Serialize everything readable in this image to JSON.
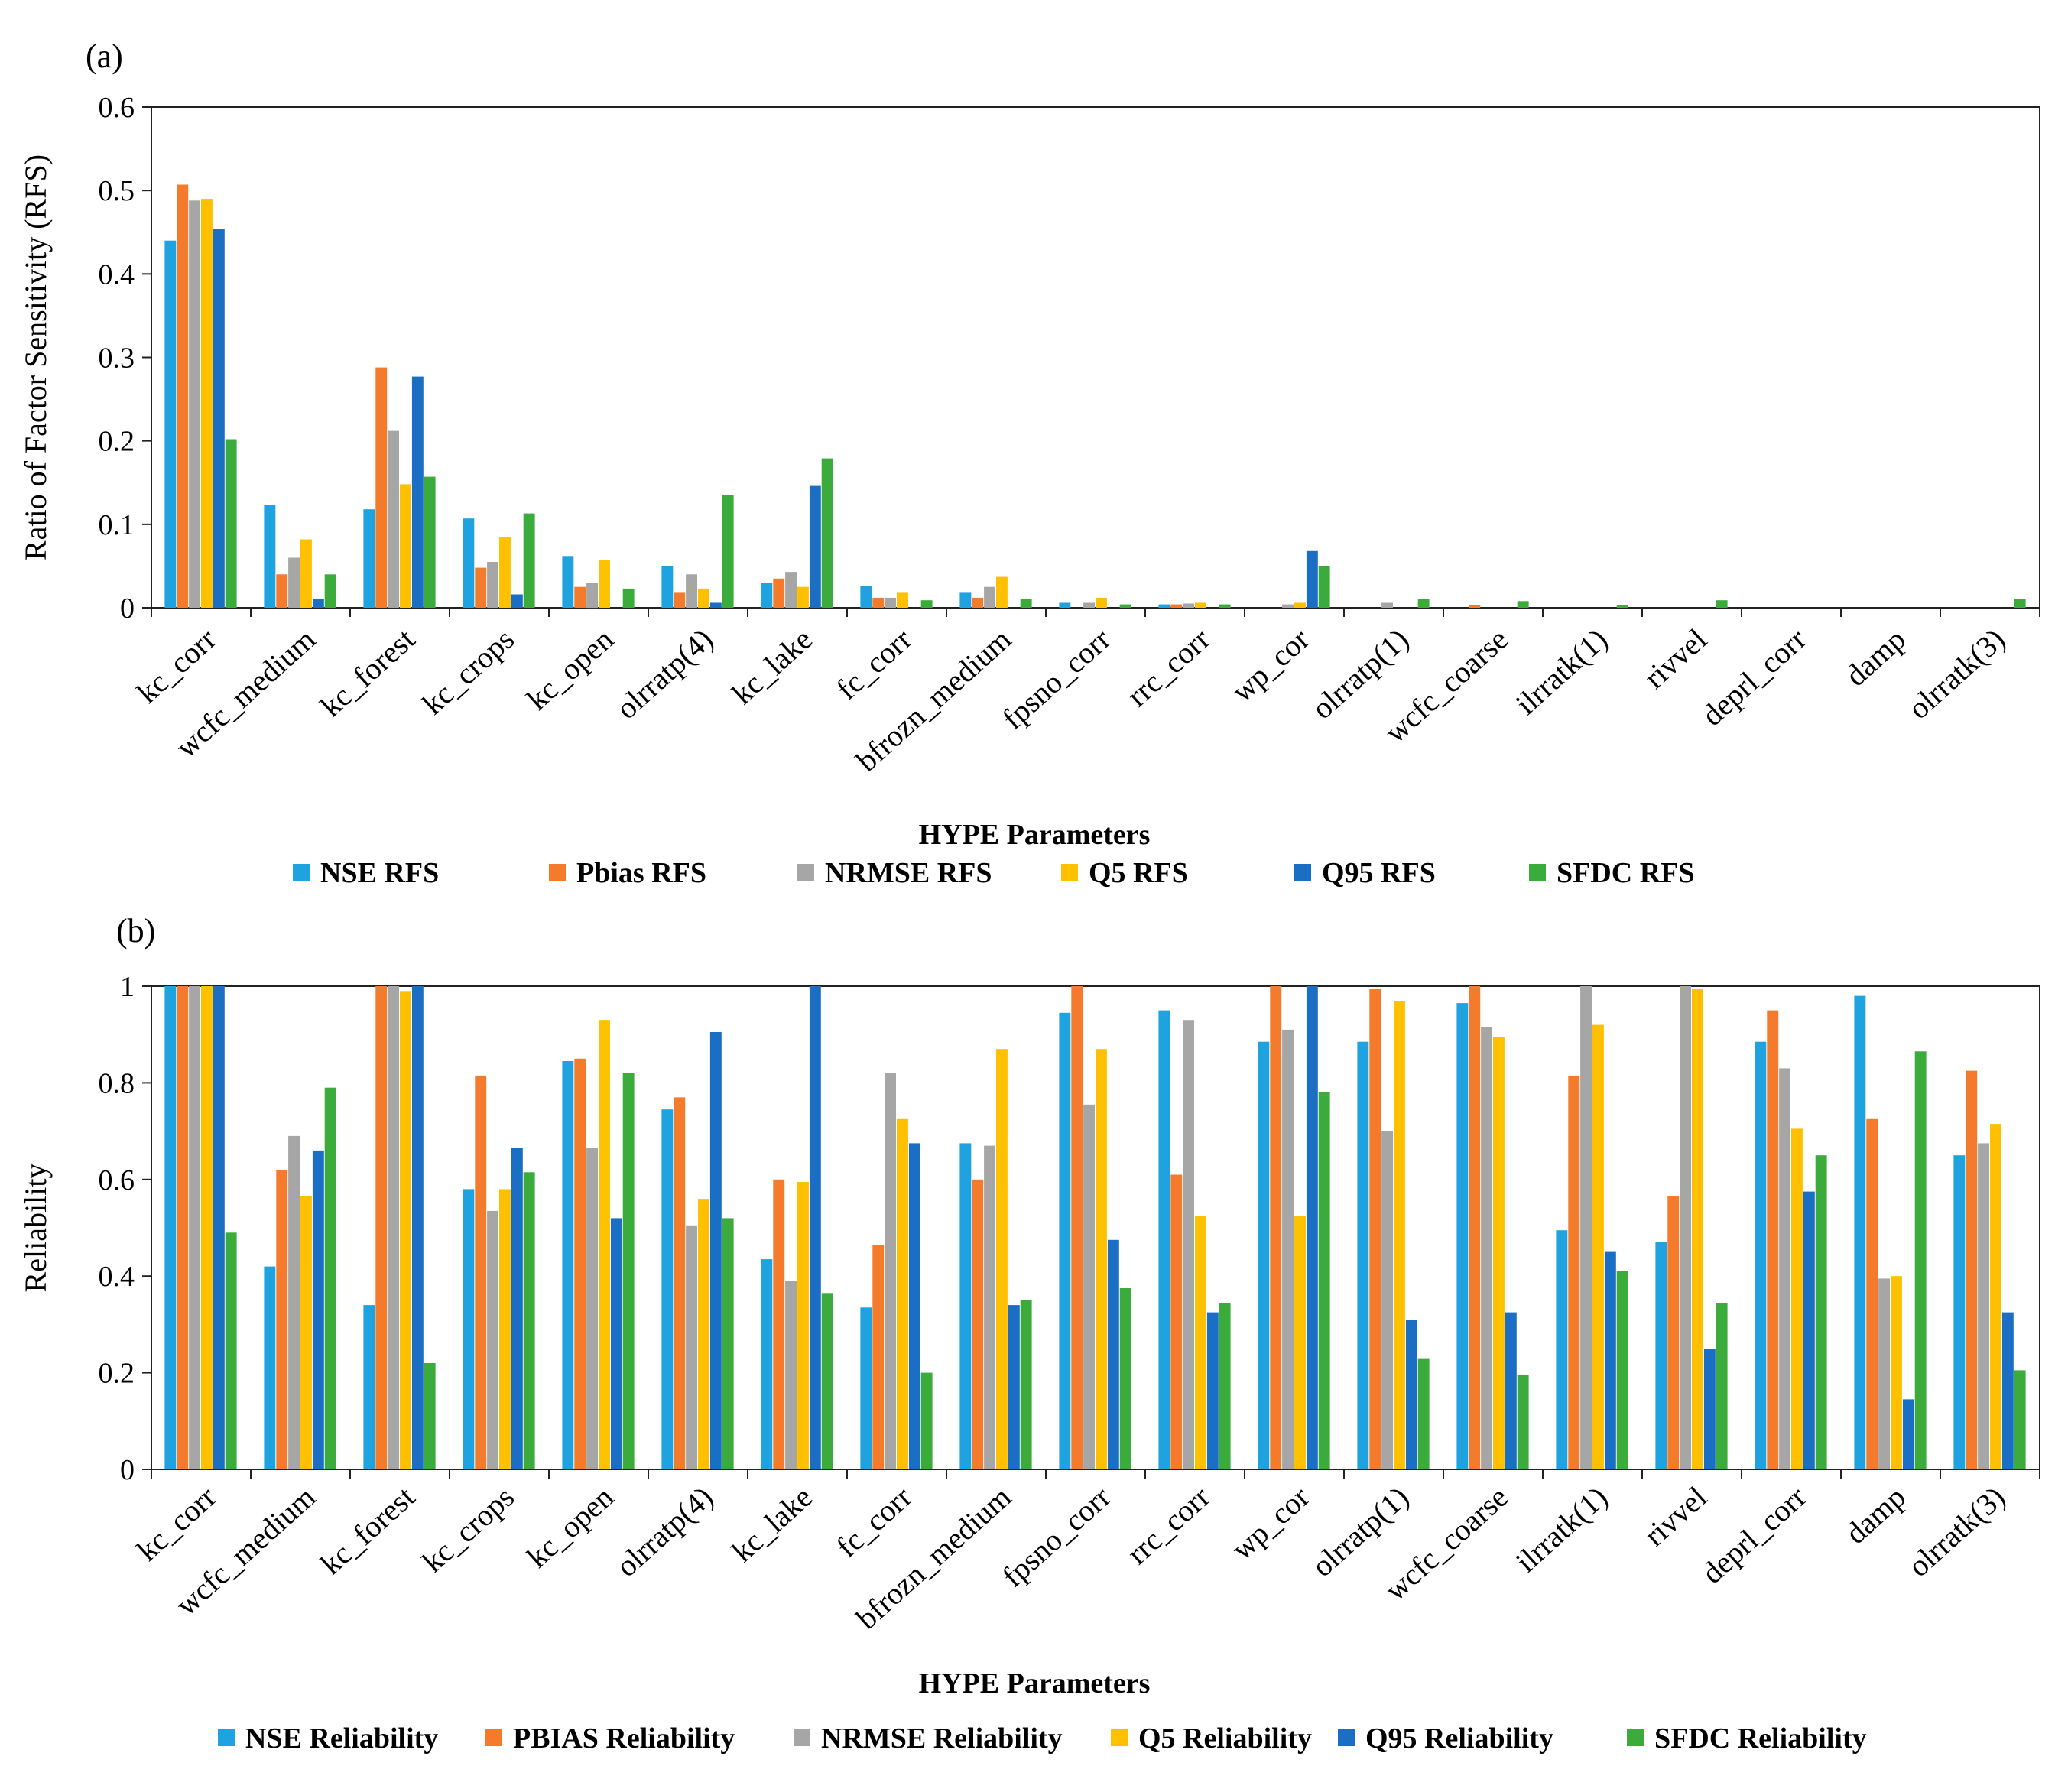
{
  "chart_data": [
    {
      "panel_label": "(a)",
      "type": "bar",
      "xlabel": "HYPE Parameters",
      "ylabel": "Ratio of Factor Sensitivity (RFS)",
      "ylim": [
        0,
        0.6
      ],
      "yticks": [
        "0",
        "0.1",
        "0.2",
        "0.3",
        "0.4",
        "0.5",
        "0.6"
      ],
      "grid": false,
      "legend_position": "bottom",
      "categories": [
        "kc_corr",
        "wcfc_medium",
        "kc_forest",
        "kc_crops",
        "kc_open",
        "olrratp(4)",
        "kc_lake",
        "fc_corr",
        "bfrozn_medium",
        "fpsno_corr",
        "rrc_corr",
        "wp_cor",
        "olrratp(1)",
        "wcfc_coarse",
        "ilrratk(1)",
        "rivvel",
        "deprl_corr",
        "damp",
        "olrratk(3)"
      ],
      "series": [
        {
          "name": "NSE RFS",
          "color": "#1fa3e0",
          "values": [
            0.44,
            0.123,
            0.118,
            0.107,
            0.062,
            0.05,
            0.03,
            0.026,
            0.018,
            0.006,
            0.004,
            0.0,
            0.0,
            0.0,
            0.0,
            0.0,
            0.0,
            0.0,
            0.0
          ]
        },
        {
          "name": "Pbias RFS",
          "color": "#f47a2c",
          "values": [
            0.507,
            0.04,
            0.288,
            0.048,
            0.025,
            0.018,
            0.035,
            0.012,
            0.012,
            0.0,
            0.004,
            0.0,
            0.0,
            0.003,
            0.0,
            0.0,
            0.0,
            0.0,
            0.0
          ]
        },
        {
          "name": "NRMSE RFS",
          "color": "#a6a6a6",
          "values": [
            0.488,
            0.06,
            0.212,
            0.055,
            0.03,
            0.04,
            0.043,
            0.012,
            0.025,
            0.006,
            0.005,
            0.004,
            0.006,
            0.0,
            0.0,
            0.0,
            0.0,
            0.0,
            0.0
          ]
        },
        {
          "name": "Q5 RFS",
          "color": "#ffc000",
          "values": [
            0.49,
            0.082,
            0.148,
            0.085,
            0.057,
            0.023,
            0.025,
            0.018,
            0.037,
            0.012,
            0.006,
            0.006,
            0.0,
            0.0,
            0.0,
            0.0,
            0.0,
            0.0,
            0.0
          ]
        },
        {
          "name": "Q95 RFS",
          "color": "#1a6fc4",
          "values": [
            0.454,
            0.011,
            0.277,
            0.016,
            0.0,
            0.006,
            0.146,
            0.0,
            0.0,
            0.0,
            0.0,
            0.068,
            0.0,
            0.0,
            0.0,
            0.0,
            0.0,
            0.0,
            0.0
          ]
        },
        {
          "name": "SFDC RFS",
          "color": "#3bab3b",
          "values": [
            0.202,
            0.04,
            0.157,
            0.113,
            0.023,
            0.135,
            0.179,
            0.009,
            0.011,
            0.004,
            0.004,
            0.05,
            0.011,
            0.008,
            0.003,
            0.009,
            0.0,
            0.0,
            0.011
          ]
        }
      ]
    },
    {
      "panel_label": "(b)",
      "type": "bar",
      "xlabel": "HYPE Parameters",
      "ylabel": "Reliability",
      "ylim": [
        0,
        1
      ],
      "yticks": [
        "0",
        "0.2",
        "0.4",
        "0.6",
        "0.8",
        "1"
      ],
      "grid": false,
      "legend_position": "bottom",
      "categories": [
        "kc_corr",
        "wcfc_medium",
        "kc_forest",
        "kc_crops",
        "kc_open",
        "olrratp(4)",
        "kc_lake",
        "fc_corr",
        "bfrozn_medium",
        "fpsno_corr",
        "rrc_corr",
        "wp_cor",
        "olrratp(1)",
        "wcfc_coarse",
        "ilrratk(1)",
        "rivvel",
        "deprl_corr",
        "damp",
        "olrratk(3)"
      ],
      "series": [
        {
          "name": "NSE Reliability",
          "color": "#1fa3e0",
          "values": [
            1.0,
            0.42,
            0.34,
            0.58,
            0.845,
            0.745,
            0.435,
            0.335,
            0.675,
            0.945,
            0.95,
            0.885,
            0.885,
            0.965,
            0.495,
            0.47,
            0.885,
            0.98,
            0.65
          ]
        },
        {
          "name": "PBIAS Reliability",
          "color": "#f47a2c",
          "values": [
            1.0,
            0.62,
            1.0,
            0.815,
            0.85,
            0.77,
            0.6,
            0.465,
            0.6,
            1.0,
            0.61,
            1.0,
            0.995,
            1.0,
            0.815,
            0.565,
            0.95,
            0.725,
            0.825
          ]
        },
        {
          "name": "NRMSE Reliability",
          "color": "#a6a6a6",
          "values": [
            1.0,
            0.69,
            1.0,
            0.535,
            0.665,
            0.505,
            0.39,
            0.82,
            0.67,
            0.755,
            0.93,
            0.91,
            0.7,
            0.915,
            1.0,
            1.0,
            0.83,
            0.395,
            0.675
          ]
        },
        {
          "name": "Q5 Reliability",
          "color": "#ffc000",
          "values": [
            1.0,
            0.565,
            0.99,
            0.58,
            0.93,
            0.56,
            0.595,
            0.725,
            0.87,
            0.87,
            0.525,
            0.525,
            0.97,
            0.895,
            0.92,
            0.995,
            0.705,
            0.4,
            0.715
          ]
        },
        {
          "name": "Q95 Reliability",
          "color": "#1a6fc4",
          "values": [
            1.0,
            0.66,
            1.0,
            0.665,
            0.52,
            0.905,
            1.0,
            0.675,
            0.34,
            0.475,
            0.325,
            1.0,
            0.31,
            0.325,
            0.45,
            0.25,
            0.575,
            0.145,
            0.325
          ]
        },
        {
          "name": "SFDC Reliability",
          "color": "#3bab3b",
          "values": [
            0.49,
            0.79,
            0.22,
            0.615,
            0.82,
            0.52,
            0.365,
            0.2,
            0.35,
            0.375,
            0.345,
            0.78,
            0.23,
            0.195,
            0.41,
            0.345,
            0.65,
            0.865,
            0.205
          ]
        }
      ]
    }
  ]
}
